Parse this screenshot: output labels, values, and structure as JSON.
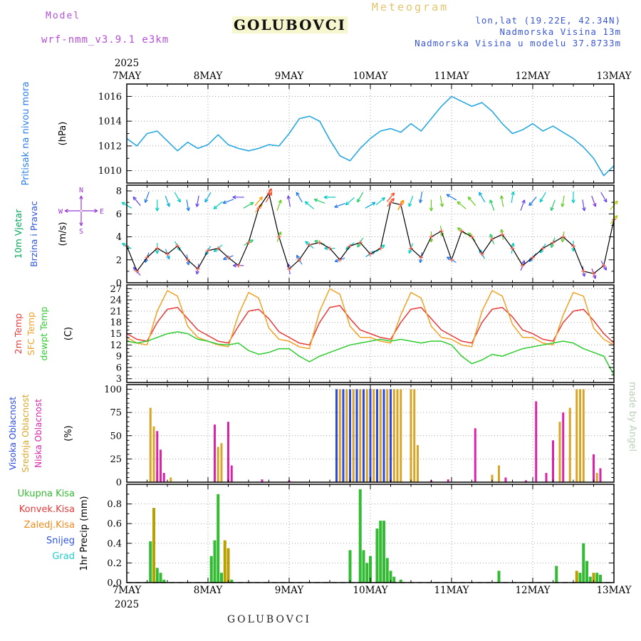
{
  "header": {
    "meteogram_label": "Meteogram",
    "model_label": "Model",
    "model_name": "wrf-nmm_v3.9.1 e3km",
    "title": "GOLUBOVCI",
    "lonlat": "lon,lat (19.22E, 42.34N)",
    "elevation": "Nadmorska Visina 13m",
    "model_elevation": "Nadmorska Visina u modelu 37.8733m"
  },
  "footer": {
    "title": "GOLUBOVCI"
  },
  "watermark": "made by Angel",
  "time_axis": {
    "year": "2025",
    "days": [
      "7MAY",
      "8MAY",
      "9MAY",
      "10MAY",
      "11MAY",
      "12MAY",
      "13MAY"
    ],
    "total_hours": 144,
    "hour_step": 3
  },
  "colors": {
    "pressure_line": "#29a8e0",
    "wind_line": "#000000",
    "wind_marker": "#f06858",
    "grid": "#9a9a9a",
    "axis": "#000000",
    "purple": "#b44fd8",
    "blue_text": "#3a57d8",
    "gold_text": "#e2c56a",
    "watermark": "#bccfbc"
  },
  "chart_data": [
    {
      "id": "pressure",
      "type": "line",
      "ylabel": "Pritisak na nivou mora",
      "ylabel_color": "#2f7fe8",
      "unit": "(hPa)",
      "ylim": [
        1009,
        1017
      ],
      "yticks": [
        1010,
        1012,
        1014,
        1016
      ],
      "line_color": "#29a8e0",
      "values": [
        1012.6,
        1012.0,
        1013.0,
        1013.2,
        1012.4,
        1011.6,
        1012.3,
        1011.8,
        1012.1,
        1012.9,
        1012.1,
        1011.8,
        1011.6,
        1011.8,
        1012.1,
        1012.0,
        1013.0,
        1014.2,
        1014.4,
        1014.0,
        1012.5,
        1011.2,
        1010.8,
        1011.8,
        1012.6,
        1013.2,
        1013.4,
        1013.1,
        1013.8,
        1013.2,
        1014.2,
        1015.2,
        1016.0,
        1015.6,
        1015.2,
        1015.5,
        1014.8,
        1013.8,
        1013.0,
        1013.3,
        1013.8,
        1013.2,
        1013.6,
        1013.1,
        1012.6,
        1011.9,
        1011.0,
        1009.6,
        1010.4
      ]
    },
    {
      "id": "wind",
      "type": "line+vectors",
      "labels": [
        {
          "text": "10m Vjetar",
          "color": "#00a85a"
        },
        {
          "text": "Brzina i Pravac",
          "color": "#2f55e0"
        }
      ],
      "unit": "(m/s)",
      "compass": [
        "N",
        "E",
        "S",
        "W"
      ],
      "compass_color": "#9a3cd0",
      "ylim": [
        0,
        8.5
      ],
      "yticks": [
        0,
        2,
        4,
        6,
        8
      ],
      "speed": [
        3.2,
        1.0,
        2.2,
        3.0,
        2.5,
        3.2,
        2.0,
        1.2,
        2.8,
        3.0,
        2.2,
        1.5,
        3.5,
        6.5,
        7.8,
        4.0,
        1.2,
        2.0,
        3.3,
        3.5,
        3.0,
        2.0,
        3.2,
        3.5,
        2.5,
        3.0,
        7.0,
        6.8,
        3.0,
        2.2,
        4.0,
        4.5,
        2.0,
        4.5,
        4.0,
        2.5,
        3.8,
        4.2,
        3.0,
        1.5,
        2.2,
        3.0,
        3.5,
        4.0,
        3.2,
        1.0,
        0.8,
        1.5,
        5.5
      ],
      "dir_deg": [
        300,
        320,
        200,
        180,
        160,
        150,
        170,
        190,
        210,
        230,
        250,
        270,
        60,
        40,
        30,
        20,
        350,
        330,
        310,
        290,
        270,
        250,
        230,
        210,
        60,
        50,
        40,
        30,
        200,
        190,
        180,
        170,
        300,
        310,
        320,
        330,
        340,
        350,
        10,
        20,
        220,
        210,
        200,
        190,
        180,
        170,
        160,
        150,
        40
      ]
    },
    {
      "id": "temperature",
      "type": "line",
      "unit": "(C)",
      "ylim": [
        2,
        28
      ],
      "yticks": [
        3,
        6,
        9,
        12,
        15,
        18,
        21,
        24,
        27
      ],
      "series": [
        {
          "name": "2m Temp",
          "color": "#e83a3a",
          "values": [
            15,
            13.5,
            13,
            18,
            21.5,
            22,
            19,
            16,
            14.5,
            13,
            12.5,
            17,
            21,
            21.5,
            19,
            15.5,
            14,
            12.5,
            12,
            18,
            22,
            22.5,
            19,
            16,
            15,
            14,
            13.5,
            18,
            21.5,
            22,
            19,
            16,
            14.5,
            13,
            12.5,
            18,
            21.5,
            22,
            19.5,
            16,
            15,
            13.5,
            13,
            18,
            21,
            21.5,
            18.5,
            15,
            12.5
          ]
        },
        {
          "name": "SFC Temp",
          "color": "#f0a226",
          "values": [
            14,
            12.5,
            12,
            21,
            26.5,
            25,
            17,
            14,
            13,
            12,
            11.5,
            20,
            26,
            24.5,
            16.5,
            13.5,
            13,
            11.5,
            11,
            21,
            27,
            25.5,
            17,
            14,
            14,
            13,
            12.5,
            20,
            26,
            24.5,
            17,
            14,
            13.5,
            12,
            11.5,
            21,
            26.5,
            25,
            17.5,
            14,
            14,
            12.5,
            12,
            20,
            26,
            25,
            16.5,
            13.5,
            12
          ]
        },
        {
          "name": "dewpt Temp",
          "color": "#2ecc2e",
          "values": [
            13,
            12.5,
            13,
            14,
            15,
            15.5,
            15,
            13.5,
            13,
            12.2,
            12,
            12.5,
            10.5,
            9.5,
            10,
            11,
            11,
            9,
            7.5,
            9,
            10,
            11,
            12,
            12.5,
            13,
            13.5,
            13,
            13.5,
            13,
            12.5,
            13,
            13,
            12,
            9,
            7,
            8,
            9.5,
            9,
            10,
            11,
            11.5,
            12,
            12.5,
            13,
            12.5,
            11,
            10,
            9,
            4
          ]
        }
      ]
    },
    {
      "id": "cloudiness",
      "type": "bar",
      "unit": "(%)",
      "ylim": [
        0,
        105
      ],
      "yticks": [
        0,
        25,
        50,
        75,
        100
      ],
      "series": [
        {
          "name": "Visoka Oblacnost",
          "color": "#2a49e0",
          "points": [
            [
              62,
              100
            ],
            [
              64,
              100
            ],
            [
              66,
              100
            ],
            [
              68,
              100
            ],
            [
              70,
              100
            ],
            [
              72,
              100
            ],
            [
              74,
              100
            ],
            [
              76,
              100
            ],
            [
              78,
              100
            ]
          ]
        },
        {
          "name": "Srednja Oblacnost",
          "color": "#d8a526",
          "points": [
            [
              7,
              80
            ],
            [
              8,
              60
            ],
            [
              9,
              12
            ],
            [
              13,
              5
            ],
            [
              27,
              38
            ],
            [
              28,
              42
            ],
            [
              63,
              100
            ],
            [
              65,
              100
            ],
            [
              67,
              100
            ],
            [
              69,
              100
            ],
            [
              71,
              100
            ],
            [
              73,
              100
            ],
            [
              75,
              100
            ],
            [
              77,
              100
            ],
            [
              79,
              100
            ],
            [
              80,
              100
            ],
            [
              81,
              100
            ],
            [
              84,
              100
            ],
            [
              85,
              100
            ],
            [
              86,
              40
            ],
            [
              108,
              8
            ],
            [
              110,
              18
            ],
            [
              128,
              65
            ],
            [
              131,
              80
            ],
            [
              133,
              100
            ],
            [
              134,
              100
            ],
            [
              135,
              100
            ],
            [
              139,
              10
            ]
          ]
        },
        {
          "name": "Niska Oblacnost",
          "color": "#dd22aa",
          "points": [
            [
              9,
              55
            ],
            [
              10,
              35
            ],
            [
              11,
              10
            ],
            [
              26,
              62
            ],
            [
              30,
              65
            ],
            [
              31,
              18
            ],
            [
              40,
              3
            ],
            [
              48,
              2
            ],
            [
              90,
              2
            ],
            [
              95,
              3
            ],
            [
              103,
              58
            ],
            [
              112,
              5
            ],
            [
              118,
              2
            ],
            [
              121,
              87
            ],
            [
              124,
              10
            ],
            [
              126,
              45
            ],
            [
              129,
              75
            ],
            [
              138,
              30
            ],
            [
              140,
              15
            ]
          ]
        }
      ]
    },
    {
      "id": "precipitation",
      "type": "bar",
      "unit": "1hr Precip (mm)",
      "ylim": [
        0,
        1.0
      ],
      "yticks": [
        0.0,
        0.2,
        0.4,
        0.6,
        0.8
      ],
      "series": [
        {
          "name": "Ukupna Kisa",
          "color": "#33bb33",
          "points": [
            [
              7,
              0.42
            ],
            [
              9,
              0.15
            ],
            [
              10,
              0.1
            ],
            [
              11,
              0.03
            ],
            [
              25,
              0.27
            ],
            [
              26,
              0.43
            ],
            [
              27,
              0.9
            ],
            [
              28,
              0.1
            ],
            [
              31,
              0.03
            ],
            [
              66,
              0.33
            ],
            [
              69,
              0.95
            ],
            [
              70,
              0.33
            ],
            [
              71,
              0.2
            ],
            [
              72,
              0.27
            ],
            [
              74,
              0.55
            ],
            [
              75,
              0.63
            ],
            [
              76,
              0.63
            ],
            [
              77,
              0.25
            ],
            [
              78,
              0.12
            ],
            [
              79,
              0.06
            ],
            [
              81,
              0.03
            ],
            [
              110,
              0.12
            ],
            [
              127,
              0.17
            ],
            [
              134,
              0.1
            ],
            [
              135,
              0.4
            ],
            [
              136,
              0.22
            ],
            [
              137,
              0.06
            ],
            [
              139,
              0.1
            ],
            [
              140,
              0.08
            ]
          ]
        },
        {
          "name": "Konvek.Kisa",
          "color": "#e83a3a",
          "points": []
        },
        {
          "name": "Zaledj.Kisa",
          "color": "#b8a000",
          "label_color": "#ef8a1a",
          "points": [
            [
              8,
              0.76
            ],
            [
              29,
              0.43
            ],
            [
              30,
              0.35
            ],
            [
              133,
              0.12
            ],
            [
              138,
              0.1
            ]
          ]
        },
        {
          "name": "Snijeg",
          "color": "#2f55e0",
          "points": []
        },
        {
          "name": "Grad",
          "color": "#22cccc",
          "points": []
        }
      ]
    }
  ]
}
